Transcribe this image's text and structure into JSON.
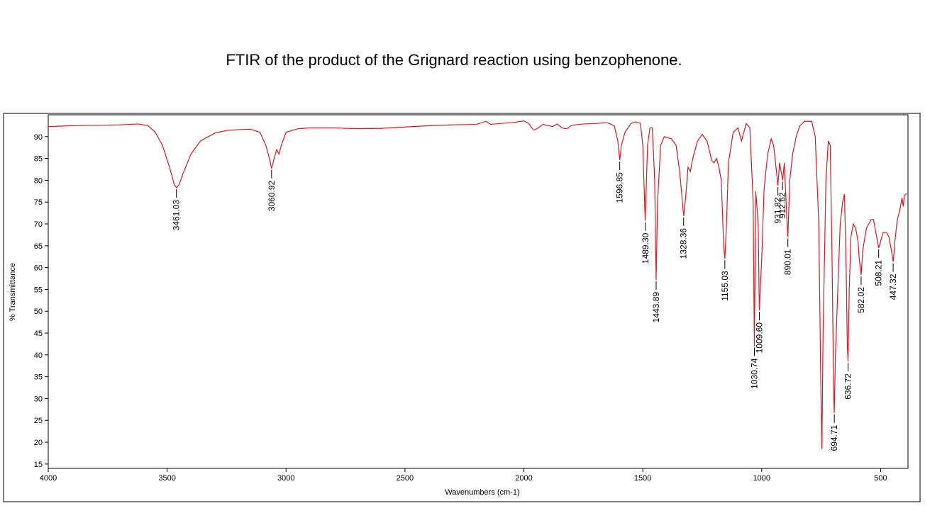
{
  "chart_data": {
    "type": "line",
    "title": "FTIR of the product of the Grignard reaction using benzophenone.",
    "x_label": "Wavenumbers (cm-1)",
    "y_label": "% Transmittance",
    "xlim": [
      4000,
      385
    ],
    "ylim": [
      14,
      95
    ],
    "xticks": [
      4000,
      3500,
      3000,
      2500,
      2000,
      1500,
      1000,
      500
    ],
    "yticks": [
      15,
      20,
      25,
      30,
      35,
      40,
      45,
      50,
      55,
      60,
      65,
      70,
      75,
      80,
      85,
      90
    ],
    "x": [
      4000,
      3900,
      3800,
      3700,
      3620,
      3580,
      3550,
      3520,
      3490,
      3470,
      3461,
      3450,
      3430,
      3400,
      3360,
      3300,
      3250,
      3200,
      3150,
      3110,
      3085,
      3070,
      3061,
      3050,
      3040,
      3030,
      3020,
      3000,
      2950,
      2900,
      2800,
      2700,
      2600,
      2500,
      2400,
      2300,
      2200,
      2160,
      2140,
      2100,
      2050,
      2000,
      1980,
      1960,
      1945,
      1920,
      1880,
      1860,
      1840,
      1820,
      1800,
      1750,
      1700,
      1650,
      1620,
      1605,
      1597,
      1590,
      1575,
      1550,
      1530,
      1510,
      1500,
      1490,
      1480,
      1470,
      1460,
      1450,
      1444,
      1438,
      1425,
      1410,
      1380,
      1360,
      1345,
      1335,
      1328,
      1320,
      1310,
      1300,
      1290,
      1270,
      1250,
      1230,
      1210,
      1200,
      1190,
      1180,
      1170,
      1160,
      1155,
      1148,
      1140,
      1120,
      1100,
      1085,
      1078,
      1065,
      1050,
      1040,
      1036,
      1031,
      1025,
      1015,
      1010,
      1000,
      990,
      975,
      960,
      950,
      940,
      932,
      925,
      915,
      912,
      905,
      895,
      890,
      882,
      870,
      855,
      840,
      820,
      790,
      775,
      760,
      752,
      747,
      742,
      730,
      720,
      712,
      705,
      697,
      695,
      690,
      680,
      670,
      660,
      652,
      645,
      640,
      637,
      632,
      625,
      615,
      605,
      595,
      590,
      582,
      575,
      560,
      540,
      530,
      520,
      508,
      500,
      490,
      475,
      465,
      455,
      447,
      440,
      430,
      420,
      410,
      405,
      400,
      390
    ],
    "series": [
      {
        "color": "#e8141c",
        "values": [
          92.3,
          92.5,
          92.6,
          92.7,
          92.9,
          92.5,
          91,
          88,
          83,
          79,
          78.3,
          79,
          82,
          86,
          89,
          90.8,
          91.4,
          91.6,
          91.7,
          91,
          88,
          85,
          82.7,
          85,
          87,
          86,
          88,
          91,
          91.8,
          92,
          92,
          91.8,
          91.9,
          92.2,
          92.5,
          92.7,
          92.8,
          93.5,
          92.8,
          93,
          93.2,
          93.6,
          93,
          91.5,
          91.8,
          92.8,
          92.3,
          92.9,
          92,
          91.8,
          92.6,
          92.9,
          93,
          93.2,
          92.5,
          89,
          84.6,
          88,
          91,
          93,
          93.4,
          93,
          88,
          70.7,
          88,
          92,
          92,
          80,
          57.2,
          75,
          88,
          90,
          89.5,
          88,
          82,
          76,
          71.8,
          76,
          83,
          82,
          85,
          89,
          90.5,
          89,
          84.5,
          84,
          85,
          83,
          80,
          65,
          62,
          70,
          84,
          91,
          92,
          89,
          90.5,
          93,
          92,
          80,
          75,
          42,
          77.5,
          70,
          50.2,
          62,
          78,
          86,
          89.5,
          88,
          83,
          78.8,
          84,
          81,
          80,
          84,
          72,
          67,
          80,
          86,
          90,
          92.5,
          93.5,
          93.5,
          90,
          70,
          35,
          18.5,
          45,
          80,
          89,
          88,
          65,
          30,
          26.7,
          40,
          55,
          70,
          75,
          76.8,
          60,
          42,
          38.5,
          55,
          67,
          70,
          69,
          66,
          62,
          58.3,
          64,
          69,
          71,
          71,
          68,
          64.5,
          66,
          68,
          68,
          67,
          64,
          61.3,
          66,
          71,
          73,
          76,
          74,
          76.5,
          77
        ]
      }
    ],
    "peaks": {
      "x": [
        3461.03,
        3060.92,
        1596.85,
        {
          "value": 1489.3,
          "label": "1489.30"
        },
        1443.89,
        1328.36,
        1155.03,
        1030.74,
        {
          "value": 1009.6,
          "label": "1009.60"
        },
        931.82,
        912.62,
        890.01,
        694.71,
        636.72,
        582.02,
        508.21,
        447.32
      ],
      "y": [
        78.3,
        82.7,
        84.6,
        70.7,
        57.2,
        71.8,
        62,
        42,
        50.2,
        78.8,
        80,
        67,
        26.7,
        38.5,
        58.3,
        64.5,
        61.3
      ]
    }
  }
}
